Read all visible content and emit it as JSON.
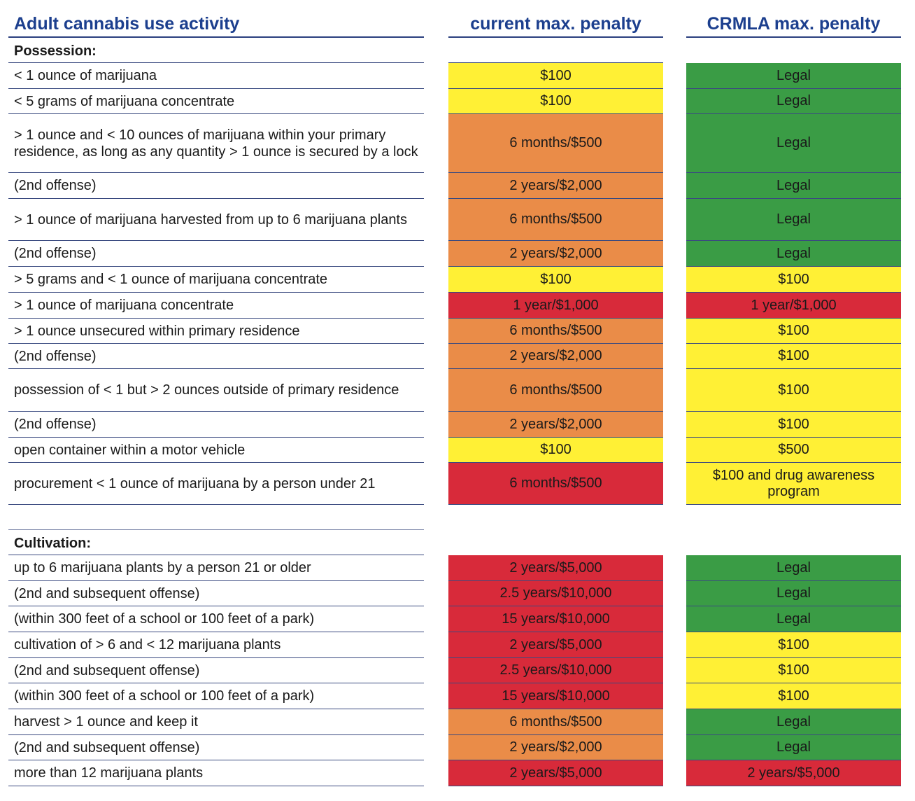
{
  "header": {
    "activity": "Adult cannabis use activity",
    "current": "current max. penalty",
    "crmla": "CRMLA max. penalty"
  },
  "colors": {
    "yellow": "#fff035",
    "orange": "#ea8c48",
    "red": "#d82a3a",
    "green": "#3a9c45",
    "header_blue": "#1c3f8e"
  },
  "possession": {
    "title": "Possession:",
    "rows": [
      {
        "label": "< 1 ounce of marijuana",
        "current": "$100",
        "current_color": "yellow",
        "crmla": "Legal",
        "crmla_color": "green"
      },
      {
        "label": "< 5 grams of marijuana concentrate",
        "current": "$100",
        "current_color": "yellow",
        "crmla": "Legal",
        "crmla_color": "green"
      },
      {
        "label": "> 1 ounce and < 10 ounces of marijuana within your primary residence, as long as any quantity > 1 ounce is secured by a lock",
        "current": "6 months/$500",
        "current_color": "orange",
        "crmla": "Legal",
        "crmla_color": "green"
      },
      {
        "label": "(2nd offense)",
        "current": "2 years/$2,000",
        "current_color": "orange",
        "crmla": "Legal",
        "crmla_color": "green"
      },
      {
        "label": "> 1 ounce of marijuana harvested from up to 6 marijuana plants",
        "current": "6 months/$500",
        "current_color": "orange",
        "crmla": "Legal",
        "crmla_color": "green"
      },
      {
        "label": "(2nd offense)",
        "current": "2 years/$2,000",
        "current_color": "orange",
        "crmla": "Legal",
        "crmla_color": "green"
      },
      {
        "label": "> 5 grams and < 1 ounce of marijuana concentrate",
        "current": "$100",
        "current_color": "yellow",
        "crmla": "$100",
        "crmla_color": "yellow"
      },
      {
        "label": "> 1 ounce of marijuana concentrate",
        "current": "1 year/$1,000",
        "current_color": "red",
        "crmla": "1 year/$1,000",
        "crmla_color": "red"
      },
      {
        "label": "> 1 ounce unsecured within primary residence",
        "current": "6 months/$500",
        "current_color": "orange",
        "crmla": "$100",
        "crmla_color": "yellow"
      },
      {
        "label": "(2nd offense)",
        "current": "2 years/$2,000",
        "current_color": "orange",
        "crmla": "$100",
        "crmla_color": "yellow"
      },
      {
        "label": "possession of < 1 but > 2 ounces outside of primary residence",
        "current": "6 months/$500",
        "current_color": "orange",
        "crmla": "$100",
        "crmla_color": "yellow"
      },
      {
        "label": "(2nd offense)",
        "current": "2 years/$2,000",
        "current_color": "orange",
        "crmla": "$100",
        "crmla_color": "yellow"
      },
      {
        "label": "open container within a motor vehicle",
        "current": "$100",
        "current_color": "yellow",
        "crmla": "$500",
        "crmla_color": "yellow"
      },
      {
        "label": "procurement < 1 ounce of marijuana by a person under 21",
        "current": "6 months/$500",
        "current_color": "red",
        "crmla": "$100 and drug awareness program",
        "crmla_color": "yellow"
      }
    ]
  },
  "cultivation": {
    "title": "Cultivation:",
    "rows": [
      {
        "label": "up to 6 marijuana plants by a person 21 or older",
        "current": "2 years/$5,000",
        "current_color": "red",
        "crmla": "Legal",
        "crmla_color": "green"
      },
      {
        "label": "(2nd and subsequent offense)",
        "current": "2.5 years/$10,000",
        "current_color": "red",
        "crmla": "Legal",
        "crmla_color": "green"
      },
      {
        "label": "(within 300 feet of a school or 100 feet of a park)",
        "current": "15 years/$10,000",
        "current_color": "red",
        "crmla": "Legal",
        "crmla_color": "green"
      },
      {
        "label": "cultivation of > 6 and < 12 marijuana plants",
        "current": "2 years/$5,000",
        "current_color": "red",
        "crmla": "$100",
        "crmla_color": "yellow"
      },
      {
        "label": "(2nd and subsequent offense)",
        "current": "2.5 years/$10,000",
        "current_color": "red",
        "crmla": "$100",
        "crmla_color": "yellow"
      },
      {
        "label": "(within 300 feet of a school or 100 feet of a park)",
        "current": "15 years/$10,000",
        "current_color": "red",
        "crmla": "$100",
        "crmla_color": "yellow"
      },
      {
        "label": "harvest > 1 ounce and keep it",
        "current": "6 months/$500",
        "current_color": "orange",
        "crmla": "Legal",
        "crmla_color": "green"
      },
      {
        "label": "(2nd and subsequent offense)",
        "current": "2 years/$2,000",
        "current_color": "orange",
        "crmla": "Legal",
        "crmla_color": "green"
      },
      {
        "label": "more than 12 marijuana plants",
        "current": "2 years/$5,000",
        "current_color": "red",
        "crmla": "2 years/$5,000",
        "crmla_color": "red"
      }
    ]
  }
}
